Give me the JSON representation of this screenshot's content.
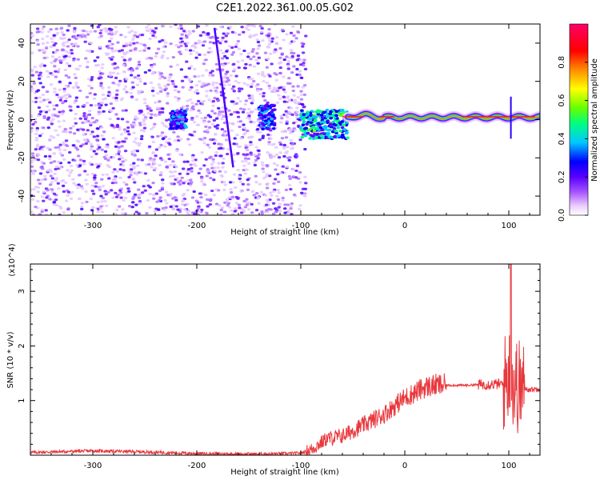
{
  "figure_title": "C2E1.2022.361.00.05.G02",
  "chart_data": [
    {
      "type": "heatmap",
      "xlabel": "Height of straight line (km)",
      "ylabel": "Frequency (Hz)",
      "xlim": [
        -360,
        130
      ],
      "ylim": [
        -50,
        50
      ],
      "x_ticks": [
        -300,
        -200,
        -100,
        0,
        100
      ],
      "y_ticks": [
        -40,
        -20,
        0,
        20,
        40
      ],
      "grid": false,
      "colorbar": {
        "label": "Normalized spectral amplitude",
        "range": [
          0,
          1
        ],
        "ticks": [
          "0.0",
          "0.2",
          "0.4",
          "0.6",
          "0.8"
        ],
        "colormap": [
          "#ffffff",
          "#e9ccff",
          "#a855ff",
          "#5a00ff",
          "#0000ff",
          "#00c8ff",
          "#00ff80",
          "#66ff00",
          "#ffff00",
          "#ff8c00",
          "#ff0000",
          "#ff0066"
        ]
      },
      "description_regions": [
        {
          "x": [
            -360,
            -95
          ],
          "freq": [
            -50,
            50
          ],
          "amplitude": 0.2
        },
        {
          "x": [
            -225,
            -210
          ],
          "freq": [
            -5,
            5
          ],
          "amplitude": 0.4
        },
        {
          "x": [
            -140,
            -125
          ],
          "freq": [
            -5,
            8
          ],
          "amplitude": 0.4
        },
        {
          "x": [
            -100,
            -55
          ],
          "freq": [
            -10,
            5
          ],
          "amplitude": 0.5
        },
        {
          "x": [
            -55,
            130
          ],
          "freq": [
            -2,
            4
          ],
          "amplitude": 0.9
        }
      ]
    },
    {
      "type": "line",
      "xlabel": "Height of straight line (km)",
      "ylabel": "SNR (10 * v/v)",
      "y_multiplier": "(x10^4)",
      "xlim": [
        -360,
        130
      ],
      "ylim": [
        0,
        3.5
      ],
      "x_ticks": [
        -300,
        -200,
        -100,
        0,
        100
      ],
      "y_ticks": [
        1,
        2,
        3
      ],
      "color": "#e8383d",
      "series": [
        {
          "x": [
            -360,
            -300,
            -250,
            -200,
            -150,
            -110,
            -100,
            -90,
            -75,
            -60,
            -50,
            -40,
            -30,
            -20,
            -10,
            0,
            10,
            20,
            30,
            40,
            60,
            80,
            90,
            95,
            100,
            105,
            110,
            120,
            130
          ],
          "y": [
            0.05,
            0.08,
            0.06,
            0.03,
            0.02,
            0.03,
            0.04,
            0.1,
            0.3,
            0.35,
            0.45,
            0.55,
            0.65,
            0.75,
            0.9,
            1.05,
            1.15,
            1.25,
            1.28,
            1.28,
            1.28,
            1.3,
            1.3,
            1.3,
            1.5,
            1.3,
            1.25,
            1.2,
            1.22
          ]
        }
      ],
      "peak": {
        "x": 102,
        "y": 3.5
      }
    }
  ]
}
